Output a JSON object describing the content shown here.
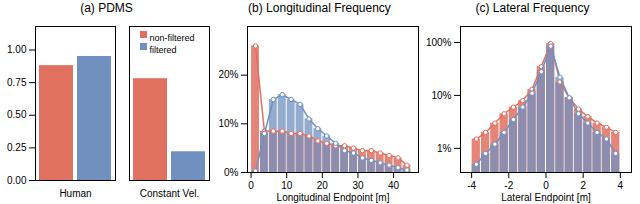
{
  "chart_data": [
    {
      "type": "bar",
      "title": "(a) PDMS",
      "categories": [
        "Human",
        "Constant Vel."
      ],
      "series": [
        {
          "name": "non-filtered",
          "color": "#E07060",
          "values": [
            0.88,
            0.78
          ]
        },
        {
          "name": "filtered",
          "color": "#7090C0",
          "values": [
            0.95,
            0.22
          ]
        }
      ],
      "ylim": [
        0,
        1.18
      ],
      "yticks": [
        {
          "value": 0,
          "label": "0.00"
        },
        {
          "value": 0.25,
          "label": "0.25"
        },
        {
          "value": 0.5,
          "label": "0.50"
        },
        {
          "value": 0.75,
          "label": "0.75"
        },
        {
          "value": 1,
          "label": "1.00"
        }
      ],
      "legend": "upper right",
      "grid": false
    },
    {
      "type": "histogram",
      "title": "(b) Longitudinal Frequency",
      "xlabel": "Longitudinal Endpoint [m]",
      "bins": [
        0,
        2.5,
        5,
        7.5,
        10,
        12.5,
        15,
        17.5,
        20,
        22.5,
        25,
        27.5,
        30,
        32.5,
        35,
        37.5,
        40,
        42.5,
        45
      ],
      "series": [
        {
          "color": "#E07060",
          "values": [
            26,
            8.5,
            8.5,
            8.5,
            8,
            8,
            7.5,
            6.5,
            6,
            5.5,
            5.5,
            5,
            4.5,
            4.5,
            4,
            3.5,
            3,
            1.5
          ]
        },
        {
          "color": "#7090C0",
          "values": [
            0.3,
            8,
            15,
            16,
            15,
            14,
            11,
            9,
            7.5,
            6,
            4.5,
            4,
            3,
            2.5,
            2,
            1.5,
            1,
            0.5
          ]
        }
      ],
      "xlim": [
        -1,
        47
      ],
      "xticks": [
        0,
        10,
        20,
        30,
        40
      ],
      "ylim": [
        0,
        30
      ],
      "yticks": [
        {
          "value": 0,
          "label": "0%"
        },
        {
          "value": 10,
          "label": "10%"
        },
        {
          "value": 20,
          "label": "20%"
        }
      ],
      "marker": "circle",
      "line_style": "solid",
      "grid": false
    },
    {
      "type": "histogram",
      "title": "(c) Lateral Frequency",
      "xlabel": "Lateral Endpoint [m]",
      "bins": [
        -4.0,
        -3.5,
        -3.0,
        -2.5,
        -2.0,
        -1.5,
        -1.0,
        -0.5,
        0.0,
        0.5,
        1.0,
        1.5,
        2.0,
        2.5,
        3.0,
        3.5,
        4.0
      ],
      "series": [
        {
          "color": "#E07060",
          "values": [
            1.5,
            2.0,
            3.0,
            4.5,
            6.0,
            8.0,
            13.0,
            35.0,
            95.0,
            18.0,
            9.0,
            5.5,
            4.0,
            3.0,
            2.5,
            2.0
          ]
        },
        {
          "color": "#7090C0",
          "values": [
            0.5,
            0.8,
            1.2,
            2.0,
            3.5,
            6.0,
            11.0,
            28.0,
            85.0,
            22.0,
            9.0,
            4.5,
            3.0,
            2.0,
            1.5,
            0.8
          ]
        }
      ],
      "xlim": [
        -4.6,
        4.6
      ],
      "xticks": [
        -4,
        -2,
        0,
        2,
        4
      ],
      "log": "y",
      "ylim": [
        0.35,
        200
      ],
      "yticks": [
        {
          "value": 1,
          "label": "1%"
        },
        {
          "value": 10,
          "label": "10%"
        },
        {
          "value": 100,
          "label": "100%"
        }
      ],
      "marker": "circle",
      "line_style": "solid",
      "grid": false
    }
  ]
}
